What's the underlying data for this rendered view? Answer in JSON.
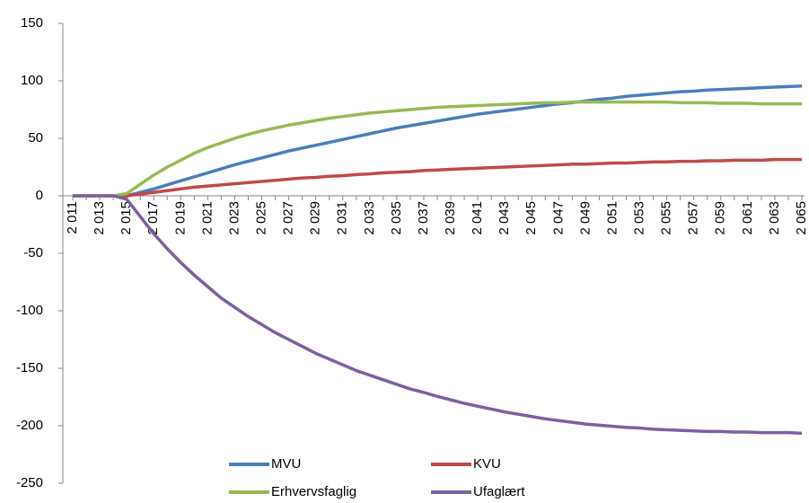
{
  "chart_data": {
    "type": "line",
    "categories": [
      "2 011",
      null,
      "2 013",
      null,
      "2 015",
      null,
      "2 017",
      null,
      "2 019",
      null,
      "2 021",
      null,
      "2 023",
      null,
      "2 025",
      null,
      "2 027",
      null,
      "2 029",
      null,
      "2 031",
      null,
      "2 033",
      null,
      "2 035",
      null,
      "2 037",
      null,
      "2 039",
      null,
      "2 041",
      null,
      "2 043",
      null,
      "2 045",
      null,
      "2 047",
      null,
      "2 049",
      null,
      "2 051",
      null,
      "2 053",
      null,
      "2 055",
      null,
      "2 057",
      null,
      "2 059",
      null,
      "2 061",
      null,
      "2 063",
      null,
      "2 065"
    ],
    "series": [
      {
        "name": "MVU",
        "color": "#4a7ebb",
        "values": [
          0,
          0,
          0,
          0,
          0,
          3,
          6,
          9.5,
          13,
          16.5,
          20,
          23.5,
          27,
          30,
          33,
          36,
          39,
          41.5,
          44,
          46.5,
          49,
          51.5,
          54,
          56.5,
          59,
          61,
          63,
          65,
          67,
          69,
          71,
          72.5,
          74,
          75.5,
          77,
          78.5,
          80,
          81,
          82.5,
          84,
          85,
          86.5,
          87.5,
          88.5,
          89.5,
          90.5,
          91,
          92,
          92.5,
          93,
          93.5,
          94,
          94.5,
          95,
          95.5
        ]
      },
      {
        "name": "KVU",
        "color": "#be4b48",
        "values": [
          0,
          0,
          0,
          0,
          0,
          1.5,
          3,
          4.5,
          6,
          7.5,
          8.5,
          9.5,
          10.5,
          11.5,
          12.5,
          13.5,
          14.5,
          15.5,
          16,
          17,
          17.5,
          18.5,
          19,
          20,
          20.5,
          21,
          22,
          22.5,
          23,
          23.5,
          24,
          24.5,
          25,
          25.5,
          26,
          26.5,
          27,
          27.5,
          27.5,
          28,
          28.5,
          28.5,
          29,
          29.5,
          29.5,
          30,
          30,
          30.5,
          30.5,
          31,
          31,
          31,
          31.5,
          31.5,
          31.5
        ]
      },
      {
        "name": "Erhvervsfaglig",
        "color": "#98b954",
        "values": [
          0,
          0,
          0,
          0,
          2,
          10,
          18,
          25,
          31,
          37,
          42,
          46,
          50,
          53.5,
          56.5,
          59,
          61.5,
          63.5,
          65.5,
          67.5,
          69,
          70.5,
          72,
          73,
          74,
          75,
          76,
          77,
          77.5,
          78,
          78.5,
          79,
          79.5,
          80,
          80.5,
          81,
          81,
          81.5,
          81.5,
          81.5,
          81.5,
          81.5,
          81.5,
          81.5,
          81.5,
          81,
          81,
          81,
          80.5,
          80.5,
          80.5,
          80,
          80,
          80,
          80
        ]
      },
      {
        "name": "Ufaglært",
        "color": "#7d60a0",
        "values": [
          0,
          0,
          0,
          0,
          -3,
          -18,
          -33,
          -46,
          -58,
          -69,
          -79,
          -89,
          -97,
          -105,
          -112,
          -119,
          -125,
          -131,
          -137,
          -142,
          -147,
          -152,
          -156,
          -160,
          -164,
          -168,
          -171,
          -174.5,
          -177.5,
          -180.5,
          -183,
          -185.5,
          -188,
          -190,
          -192,
          -194,
          -195.5,
          -197,
          -198.5,
          -199.5,
          -200.5,
          -201.5,
          -202,
          -203,
          -203.5,
          -204,
          -204.5,
          -205,
          -205,
          -205.5,
          -205.5,
          -206,
          -206,
          -206,
          -206.5
        ]
      }
    ],
    "ylim": [
      -250,
      150
    ],
    "yticks": [
      -250,
      -200,
      -150,
      -100,
      -50,
      0,
      50,
      100,
      150
    ],
    "grid": false,
    "legend": "bottom"
  }
}
